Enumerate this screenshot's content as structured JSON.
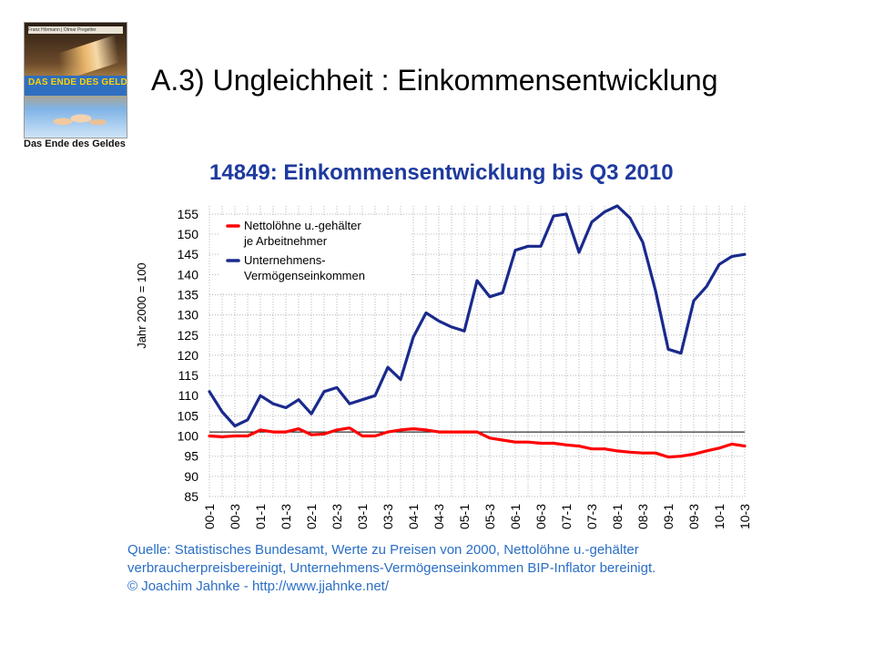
{
  "slide": {
    "title": "A.3) Ungleichheit : Einkommensentwicklung",
    "book_caption": "Das Ende des Geldes",
    "book_cover_title": "DAS ENDE DES GELDES",
    "book_cover_authors": "Franz Hörmann | Otmar Pregetter"
  },
  "chart_data": {
    "type": "line",
    "title": "14849: Einkommensentwicklung bis Q3 2010",
    "ylabel": "Jahr 2000 = 100",
    "xlabel": "",
    "ylim": [
      85,
      157
    ],
    "yticks": [
      85,
      90,
      95,
      100,
      105,
      110,
      115,
      120,
      125,
      130,
      135,
      140,
      145,
      150,
      155
    ],
    "x_tick_labels": [
      "00-1",
      "00-3",
      "01-1",
      "01-3",
      "02-1",
      "02-3",
      "03-1",
      "03-3",
      "04-1",
      "04-3",
      "05-1",
      "05-3",
      "06-1",
      "06-3",
      "07-1",
      "07-3",
      "08-1",
      "08-3",
      "09-1",
      "09-3",
      "10-1",
      "10-3"
    ],
    "x": [
      "00-1",
      "00-2",
      "00-3",
      "00-4",
      "01-1",
      "01-2",
      "01-3",
      "01-4",
      "02-1",
      "02-2",
      "02-3",
      "02-4",
      "03-1",
      "03-2",
      "03-3",
      "03-4",
      "04-1",
      "04-2",
      "04-3",
      "04-4",
      "05-1",
      "05-2",
      "05-3",
      "05-4",
      "06-1",
      "06-2",
      "06-3",
      "06-4",
      "07-1",
      "07-2",
      "07-3",
      "07-4",
      "08-1",
      "08-2",
      "08-3",
      "08-4",
      "09-1",
      "09-2",
      "09-3",
      "09-4",
      "10-1",
      "10-2",
      "10-3"
    ],
    "reference_line": 101,
    "grid": true,
    "legend_position": "top-left",
    "series": [
      {
        "name": "Nettolöhne u.-gehälter je Arbeitnehmer",
        "legend_lines": [
          "Nettolöhne u.-gehälter",
          "je Arbeitnehmer"
        ],
        "color": "#ff0000",
        "values": [
          100,
          99.8,
          100,
          100,
          101.5,
          101,
          101,
          101.8,
          100.3,
          100.5,
          101.5,
          102,
          100,
          100,
          101,
          101.5,
          101.8,
          101.5,
          101,
          101,
          101,
          101,
          99.5,
          99,
          98.5,
          98.5,
          98.2,
          98.2,
          97.8,
          97.5,
          96.8,
          96.8,
          96.3,
          96,
          95.8,
          95.8,
          94.8,
          95,
          95.5,
          96.3,
          97,
          98,
          97.5
        ]
      },
      {
        "name": "Unternehmens-Vermögenseinkommen",
        "legend_lines": [
          "Unternehmens-",
          "Vermögenseinkommen"
        ],
        "color": "#1a2a8c",
        "values": [
          111,
          106,
          102.5,
          104,
          110,
          108,
          107,
          109,
          105.5,
          111,
          112,
          108,
          109,
          110,
          117,
          114,
          124.5,
          130.5,
          128.5,
          127,
          126,
          138.5,
          134.5,
          135.5,
          146,
          147,
          147,
          154.5,
          155,
          145.5,
          153,
          155.5,
          157,
          154,
          148,
          136,
          121.5,
          120.5,
          133.5,
          137,
          142.5,
          144.5,
          145
        ]
      }
    ]
  },
  "source": {
    "line1": "Quelle: Statistisches Bundesamt, Werte zu Preisen von 2000,  Nettolöhne u.-gehälter",
    "line2": "verbraucherpreisbereinigt,  Unternehmens-Vermögenseinkommen BIP-Inflator bereinigt.",
    "line3": "© Joachim Jahnke - http://www.jjahnke.net/"
  },
  "colors": {
    "title_blue": "#1e3a9e",
    "source_blue": "#2a6ec6",
    "grid": "#b8b8b8"
  }
}
